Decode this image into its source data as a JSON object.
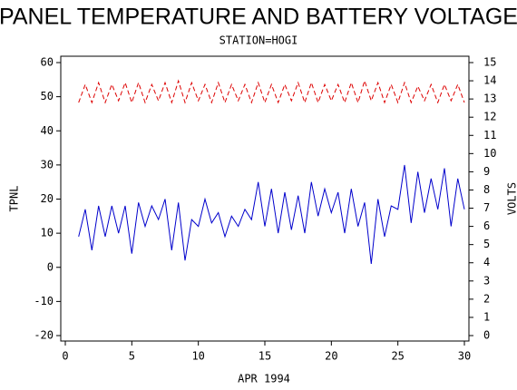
{
  "chart_data": {
    "type": "line",
    "title": "PANEL TEMPERATURE AND BATTERY VOLTAGE",
    "subtitle": "STATION=HOGI",
    "xlabel": "APR 1994",
    "ylabel": "TPNL",
    "y2label": "VOLTS",
    "x": [
      1,
      1.5,
      2,
      2.5,
      3,
      3.5,
      4,
      4.5,
      5,
      5.5,
      6,
      6.5,
      7,
      7.5,
      8,
      8.5,
      9,
      9.5,
      10,
      10.5,
      11,
      11.5,
      12,
      12.5,
      13,
      13.5,
      14,
      14.5,
      15,
      15.5,
      16,
      16.5,
      17,
      17.5,
      18,
      18.5,
      19,
      19.5,
      20,
      20.5,
      21,
      21.5,
      22,
      22.5,
      23,
      23.5,
      24,
      24.5,
      25,
      25.5,
      26,
      26.5,
      27,
      27.5,
      28,
      28.5,
      29,
      29.5,
      30
    ],
    "series": [
      {
        "name": "TPNL",
        "color": "#0000cc",
        "dash": false,
        "axis": "y",
        "values": [
          9,
          17,
          5,
          18,
          9,
          18,
          10,
          18,
          4,
          19,
          12,
          18,
          14,
          20,
          5,
          19,
          2,
          14,
          12,
          20,
          13,
          16,
          9,
          15,
          12,
          17,
          14,
          25,
          12,
          23,
          10,
          22,
          11,
          21,
          10,
          25,
          15,
          23,
          16,
          22,
          10,
          23,
          12,
          19,
          1,
          20,
          9,
          18,
          17,
          30,
          13,
          28,
          16,
          26,
          17,
          29,
          12,
          26,
          17
        ]
      },
      {
        "name": "VOLTS",
        "color": "#dd0000",
        "dash": true,
        "axis": "y2",
        "values": [
          12.8,
          13.8,
          12.8,
          13.9,
          12.8,
          13.8,
          12.9,
          13.9,
          12.8,
          13.9,
          12.8,
          13.8,
          12.9,
          13.9,
          12.8,
          14,
          12.8,
          13.9,
          12.9,
          13.8,
          12.8,
          13.9,
          12.8,
          13.8,
          12.9,
          13.8,
          12.8,
          13.9,
          12.8,
          13.8,
          12.8,
          13.8,
          12.9,
          13.9,
          12.8,
          13.9,
          12.8,
          13.8,
          12.9,
          13.8,
          12.8,
          13.9,
          12.8,
          14,
          12.9,
          13.9,
          12.8,
          13.8,
          12.8,
          13.9,
          12.8,
          13.7,
          12.9,
          13.8,
          12.8,
          13.8,
          12.9,
          13.8,
          12.8
        ]
      }
    ],
    "xlim": [
      0,
      30
    ],
    "xticks": [
      0,
      5,
      10,
      15,
      20,
      25,
      30
    ],
    "ylim": [
      -20,
      60
    ],
    "yticks": [
      -20,
      -10,
      0,
      10,
      20,
      30,
      40,
      50,
      60
    ],
    "y2lim": [
      0,
      15
    ],
    "y2ticks": [
      0,
      1,
      2,
      3,
      4,
      5,
      6,
      7,
      8,
      9,
      10,
      11,
      12,
      13,
      14,
      15
    ]
  }
}
